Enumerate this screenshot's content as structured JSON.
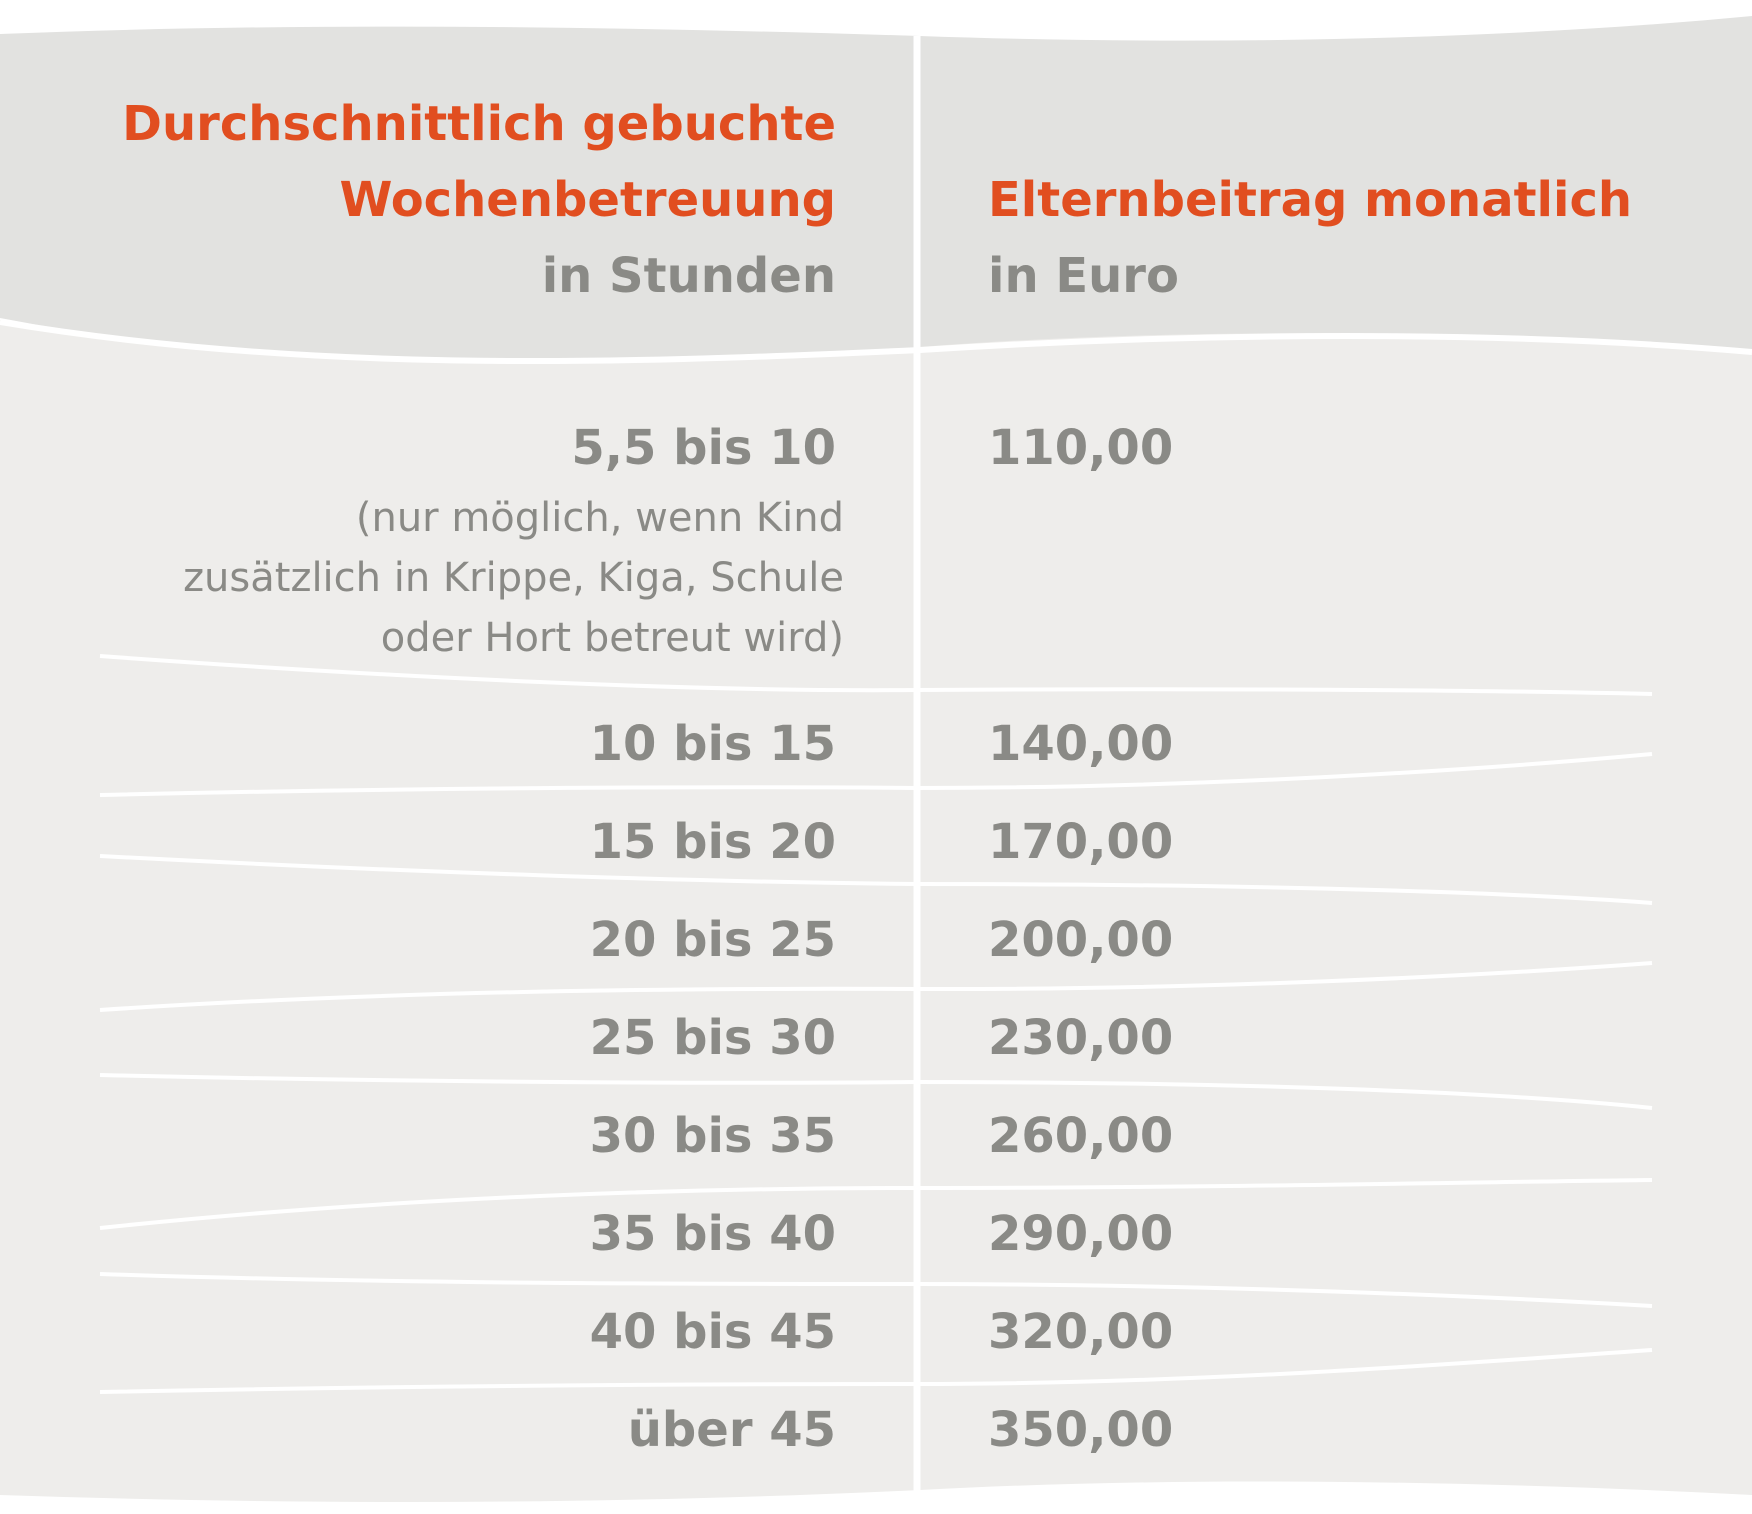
{
  "header": {
    "left": {
      "title_line1": "Durchschnittlich gebuchte",
      "title_line2": "Wochenbetreuung",
      "unit": "in Stunden"
    },
    "right": {
      "title": "Elternbeitrag monatlich",
      "unit": "in Euro"
    }
  },
  "rows": [
    {
      "hours": "5,5 bis 10",
      "note_line1": "(nur möglich, wenn Kind",
      "note_line2": "zusätzlich in Krippe, Kiga, Schule",
      "note_line3": "oder Hort betreut wird)",
      "fee": "110,00"
    },
    {
      "hours": "10 bis 15",
      "fee": "140,00"
    },
    {
      "hours": "15 bis 20",
      "fee": "170,00"
    },
    {
      "hours": "20 bis 25",
      "fee": "200,00"
    },
    {
      "hours": "25 bis 30",
      "fee": "230,00"
    },
    {
      "hours": "30 bis 35",
      "fee": "260,00"
    },
    {
      "hours": "35 bis 40",
      "fee": "290,00"
    },
    {
      "hours": "40 bis 45",
      "fee": "320,00"
    },
    {
      "hours": "über 45",
      "fee": "350,00"
    }
  ],
  "colors": {
    "header_bg": "#e2e2e0",
    "body_bg": "#eeedeb",
    "accent": "#e14e20",
    "text": "#8a8a86",
    "separator": "#ffffff"
  }
}
